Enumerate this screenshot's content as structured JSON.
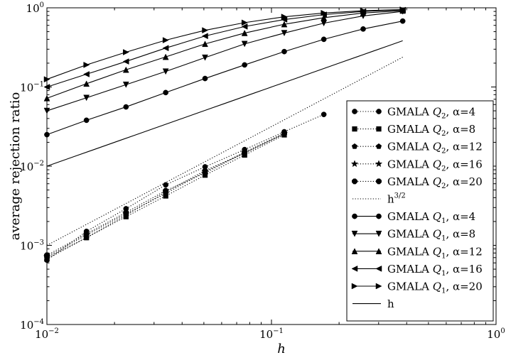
{
  "chart_data": {
    "type": "line",
    "xlabel": "h",
    "ylabel": "average rejection ratio",
    "xscale": "log",
    "yscale": "log",
    "xlim": [
      0.01,
      1
    ],
    "ylim": [
      0.0001,
      1
    ],
    "xticks": [
      {
        "value": 0.01,
        "base": "10",
        "exp": "−2"
      },
      {
        "value": 0.1,
        "base": "10",
        "exp": "−1"
      },
      {
        "value": 1,
        "base": "10",
        "exp": "0"
      }
    ],
    "yticks": [
      {
        "value": 0.0001,
        "base": "10",
        "exp": "−4"
      },
      {
        "value": 0.001,
        "base": "10",
        "exp": "−3"
      },
      {
        "value": 0.01,
        "base": "10",
        "exp": "−2"
      },
      {
        "value": 0.1,
        "base": "10",
        "exp": "−1"
      },
      {
        "value": 1,
        "base": "10",
        "exp": "0"
      }
    ],
    "grid": false,
    "legend_position": "lower-right",
    "x": [
      0.01,
      0.015,
      0.0225,
      0.0338,
      0.0506,
      0.0759,
      0.114,
      0.171,
      0.256,
      0.384
    ],
    "series": [
      {
        "name": "GMALA Q2, α=4",
        "legend": {
          "prefix": "GMALA ",
          "q": "Q",
          "sub": "2",
          "suffix": ", α=4"
        },
        "linestyle": "dotted",
        "marker": "circle",
        "values": [
          0.00065,
          0.0015,
          0.0029,
          0.0058,
          0.0098,
          0.0162,
          0.0272,
          0.045,
          null,
          null
        ]
      },
      {
        "name": "GMALA Q2, α=8",
        "legend": {
          "prefix": "GMALA ",
          "q": "Q",
          "sub": "2",
          "suffix": ", α=8"
        },
        "linestyle": "dotted",
        "marker": "square",
        "values": [
          0.00067,
          0.00125,
          0.0023,
          0.0042,
          0.0077,
          0.0138,
          0.0248,
          null,
          null,
          null
        ]
      },
      {
        "name": "GMALA Q2, α=12",
        "legend": {
          "prefix": "GMALA ",
          "q": "Q",
          "sub": "2",
          "suffix": ", α=12"
        },
        "linestyle": "dotted",
        "marker": "pentagon",
        "values": [
          0.0007,
          0.00125,
          0.0024,
          0.0047,
          0.0088,
          0.0145,
          0.0255,
          null,
          null,
          null
        ]
      },
      {
        "name": "GMALA Q2, α=16",
        "legend": {
          "prefix": "GMALA ",
          "q": "Q",
          "sub": "2",
          "suffix": ", α=16"
        },
        "linestyle": "dotted",
        "marker": "star",
        "values": [
          0.00072,
          0.00135,
          0.0025,
          0.0045,
          0.0085,
          0.015,
          0.026,
          null,
          null,
          null
        ]
      },
      {
        "name": "GMALA Q2, α=20",
        "legend": {
          "prefix": "GMALA ",
          "q": "Q",
          "sub": "2",
          "suffix": ", α=20"
        },
        "linestyle": "dotted",
        "marker": "octagon",
        "values": [
          0.00075,
          0.0014,
          0.0026,
          0.0049,
          0.0082,
          0.0148,
          0.0258,
          null,
          null,
          null
        ]
      },
      {
        "name": "h^3/2",
        "legend": {
          "prefix": "h",
          "sup": "3/2"
        },
        "linestyle": "dotted",
        "marker": "none",
        "reference": "h^1.5",
        "xrange": [
          0.01,
          0.384
        ]
      },
      {
        "name": "GMALA Q1, α=4",
        "legend": {
          "prefix": "GMALA ",
          "q": "Q",
          "sub": "1",
          "suffix": ", α=4"
        },
        "linestyle": "solid",
        "marker": "circle",
        "values": [
          0.025,
          0.038,
          0.056,
          0.085,
          0.128,
          0.19,
          0.28,
          0.4,
          0.54,
          0.68
        ]
      },
      {
        "name": "GMALA Q1, α=8",
        "legend": {
          "prefix": "GMALA ",
          "q": "Q",
          "sub": "1",
          "suffix": ", α=8"
        },
        "linestyle": "solid",
        "marker": "triangle-down",
        "values": [
          0.05,
          0.073,
          0.107,
          0.157,
          0.235,
          0.35,
          0.48,
          0.64,
          0.79,
          0.9
        ]
      },
      {
        "name": "GMALA Q1, α=12",
        "legend": {
          "prefix": "GMALA ",
          "q": "Q",
          "sub": "1",
          "suffix": ", α=12"
        },
        "linestyle": "solid",
        "marker": "triangle-up",
        "values": [
          0.072,
          0.11,
          0.165,
          0.24,
          0.35,
          0.48,
          0.62,
          0.75,
          0.86,
          0.92
        ]
      },
      {
        "name": "GMALA Q1, α=16",
        "legend": {
          "prefix": "GMALA ",
          "q": "Q",
          "sub": "1",
          "suffix": ", α=16"
        },
        "linestyle": "solid",
        "marker": "triangle-left",
        "values": [
          0.1,
          0.145,
          0.21,
          0.31,
          0.44,
          0.58,
          0.71,
          0.82,
          0.9,
          0.94
        ]
      },
      {
        "name": "GMALA Q1, α=20",
        "legend": {
          "prefix": "GMALA ",
          "q": "Q",
          "sub": "1",
          "suffix": ", α=20"
        },
        "linestyle": "solid",
        "marker": "triangle-right",
        "values": [
          0.125,
          0.19,
          0.275,
          0.39,
          0.52,
          0.65,
          0.77,
          0.86,
          0.92,
          0.95
        ]
      },
      {
        "name": "h",
        "legend": {
          "prefix": "h"
        },
        "linestyle": "solid",
        "marker": "none",
        "reference": "h^1",
        "xrange": [
          0.01,
          0.384
        ]
      }
    ]
  }
}
